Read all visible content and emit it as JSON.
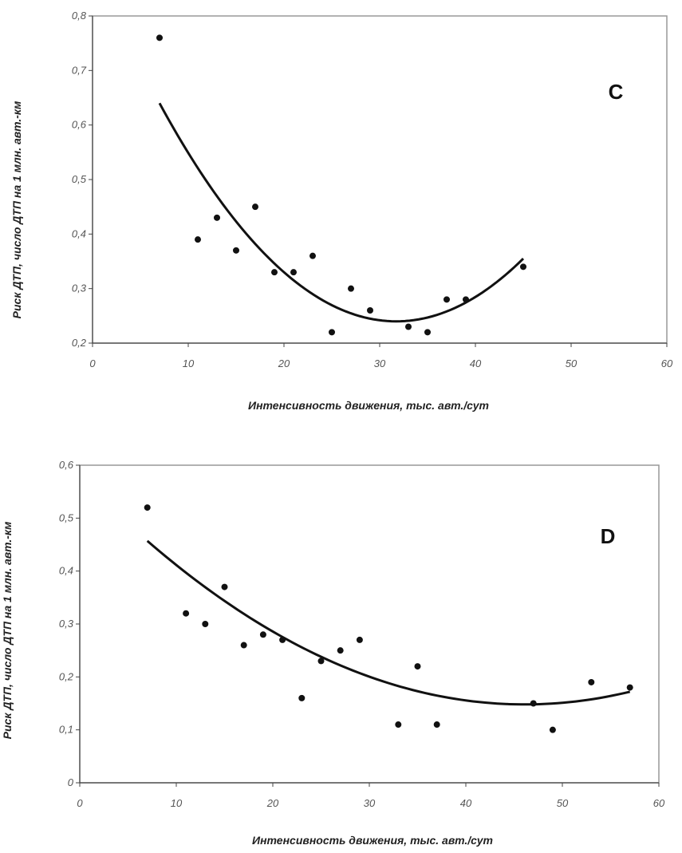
{
  "chart_data": [
    {
      "type": "scatter",
      "panel_label": "C",
      "xlabel": "Интенсивность движения, тыс. авт./сут",
      "ylabel": "Риск ДТП, число ДТП на 1 млн. авт.-км",
      "xlim": [
        0,
        60
      ],
      "ylim": [
        0.2,
        0.8
      ],
      "x_ticks": [
        0,
        10,
        20,
        30,
        40,
        50,
        60
      ],
      "x_tick_labels": [
        "0",
        "10",
        "20",
        "30",
        "40",
        "50",
        "60"
      ],
      "y_ticks": [
        0.2,
        0.3,
        0.4,
        0.5,
        0.6,
        0.7,
        0.8
      ],
      "y_tick_labels": [
        "0,2",
        "0,3",
        "0,4",
        "0,5",
        "0,6",
        "0,7",
        "0,8"
      ],
      "grid": false,
      "series": [
        {
          "name": "observations",
          "x": [
            7,
            11,
            13,
            15,
            17,
            19,
            21,
            23,
            25,
            27,
            29,
            33,
            35,
            37,
            39,
            45
          ],
          "y": [
            0.76,
            0.39,
            0.43,
            0.37,
            0.45,
            0.33,
            0.33,
            0.36,
            0.22,
            0.3,
            0.26,
            0.23,
            0.22,
            0.28,
            0.28,
            0.34
          ]
        }
      ],
      "trendline": {
        "type": "polynomial-2",
        "x_range": [
          7,
          45
        ],
        "peak_x": 7,
        "peak_y": 0.64,
        "vertex_x": 32,
        "vertex_y": 0.24,
        "end_x": 45,
        "end_y": 0.355
      }
    },
    {
      "type": "scatter",
      "panel_label": "D",
      "xlabel": "Интенсивность движения, тыс. авт./сут",
      "ylabel": "Риск ДТП, число ДТП на 1 млн. авт.-км",
      "xlim": [
        0,
        60
      ],
      "ylim": [
        0,
        0.6
      ],
      "x_ticks": [
        0,
        10,
        20,
        30,
        40,
        50,
        60
      ],
      "x_tick_labels": [
        "0",
        "10",
        "20",
        "30",
        "40",
        "50",
        "60"
      ],
      "y_ticks": [
        0,
        0.1,
        0.2,
        0.3,
        0.4,
        0.5,
        0.6
      ],
      "y_tick_labels": [
        "0",
        "0,1",
        "0,2",
        "0,3",
        "0,4",
        "0,5",
        "0,6"
      ],
      "grid": false,
      "series": [
        {
          "name": "observations",
          "x": [
            7,
            11,
            13,
            15,
            17,
            19,
            21,
            23,
            25,
            27,
            29,
            33,
            35,
            37,
            47,
            49,
            53,
            57
          ],
          "y": [
            0.52,
            0.32,
            0.3,
            0.37,
            0.26,
            0.28,
            0.27,
            0.16,
            0.23,
            0.25,
            0.27,
            0.11,
            0.22,
            0.11,
            0.15,
            0.1,
            0.19,
            0.18
          ]
        }
      ],
      "trendline": {
        "type": "polynomial-2",
        "x_range": [
          7,
          57
        ],
        "start_x": 7,
        "start_y": 0.457,
        "vertex_x": 43,
        "vertex_y": 0.15,
        "end_x": 57,
        "end_y": 0.172
      }
    }
  ]
}
